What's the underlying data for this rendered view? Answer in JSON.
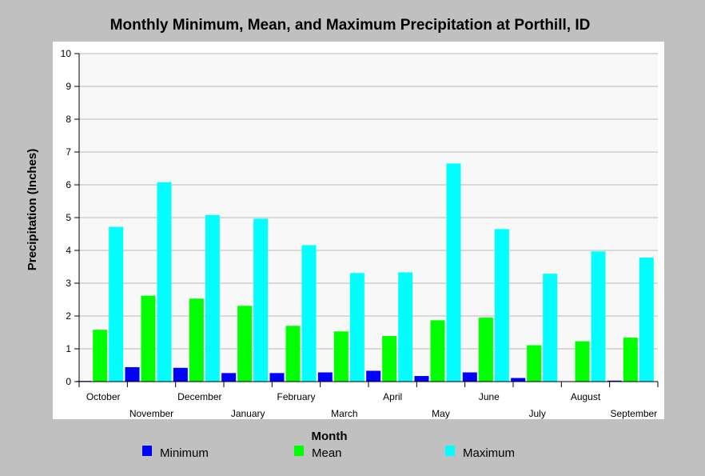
{
  "chart_data": {
    "type": "bar",
    "title": "Monthly Minimum, Mean, and Maximum Precipitation at Porthill, ID",
    "xlabel": "Month",
    "ylabel": "Precipitation (Inches)",
    "ylim": [
      0,
      10
    ],
    "yticks": [
      0,
      1,
      2,
      3,
      4,
      5,
      6,
      7,
      8,
      9,
      10
    ],
    "grid": true,
    "legend_position": "bottom",
    "categories": [
      "October",
      "November",
      "December",
      "January",
      "February",
      "March",
      "April",
      "May",
      "June",
      "July",
      "August",
      "September"
    ],
    "series": [
      {
        "name": "Minimum",
        "color": "#0000ff",
        "values": [
          0.02,
          0.44,
          0.42,
          0.26,
          0.26,
          0.28,
          0.33,
          0.17,
          0.28,
          0.11,
          0.0,
          0.03
        ]
      },
      {
        "name": "Mean",
        "color": "#00ff00",
        "values": [
          1.58,
          2.62,
          2.53,
          2.31,
          1.7,
          1.53,
          1.39,
          1.87,
          1.95,
          1.11,
          1.23,
          1.34
        ]
      },
      {
        "name": "Maximum",
        "color": "#00ffff",
        "values": [
          4.72,
          6.08,
          5.08,
          4.97,
          4.16,
          3.31,
          3.33,
          6.65,
          4.65,
          3.29,
          3.97,
          3.78
        ]
      }
    ]
  }
}
